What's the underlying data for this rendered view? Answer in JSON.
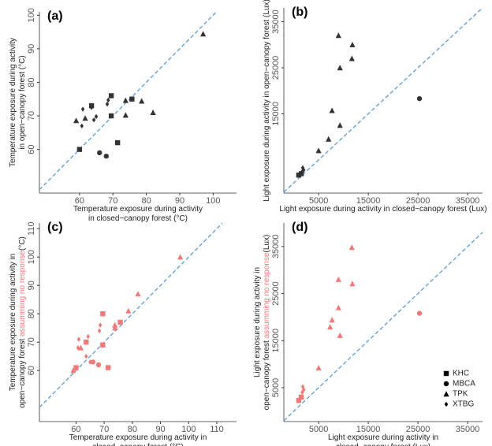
{
  "chart_data": [
    {
      "type": "scatter",
      "title": "(a)",
      "diagonal_color": "#5b9bd5",
      "xlabel": [
        [
          {
            "text": "Temperature exposure during activity"
          }
        ],
        [
          {
            "text": "in closed−canopy forest (°C)"
          }
        ]
      ],
      "ylabel": [
        [
          {
            "text": "Temperature exposure during activity"
          }
        ],
        [
          {
            "text": "in open−canopy forest (°C)"
          }
        ]
      ],
      "xlim": [
        48,
        107
      ],
      "ylim": [
        47,
        101
      ],
      "xticks": [
        60,
        70,
        80,
        90,
        100
      ],
      "yticks": [
        60,
        70,
        80,
        90,
        100
      ],
      "series": [
        {
          "marker": "square",
          "color": "#333333",
          "x": [
            60,
            69.5,
            69.5,
            71.4,
            63.6,
            75.7
          ],
          "values": [
            60,
            76,
            70,
            62,
            73,
            75
          ]
        },
        {
          "marker": "circle",
          "color": "#333333",
          "x": [
            66,
            68
          ],
          "values": [
            59,
            58
          ]
        },
        {
          "marker": "triangle",
          "color": "#333333",
          "x": [
            59,
            61.7,
            73.8,
            73.8,
            78.6,
            82,
            97
          ],
          "values": [
            68.6,
            69.3,
            74.6,
            70.2,
            74.4,
            71,
            94.4
          ]
        },
        {
          "marker": "diamond",
          "color": "#333333",
          "x": [
            61,
            63.6,
            60.7,
            64.3,
            68.6,
            68.3,
            65
          ],
          "values": [
            72,
            72.5,
            67,
            68.8,
            74.7,
            73.5,
            69.8
          ]
        }
      ]
    },
    {
      "type": "scatter",
      "title": "(b)",
      "diagonal_color": "#5b9bd5",
      "xlabel": [
        [
          {
            "text": "Light exposure during activity in closed−canopy forest (Lux)"
          }
        ]
      ],
      "ylabel": [
        [
          {
            "text": "Light exposure during activity in open−canopy forest (Lux)"
          }
        ]
      ],
      "xlim": [
        -2000,
        38000
      ],
      "ylim": [
        -2200,
        38000
      ],
      "xticks": [
        5000,
        15000,
        25000,
        35000
      ],
      "yticks": [
        15000,
        25000,
        35000
      ],
      "series": [
        {
          "marker": "square",
          "color": "#333333",
          "x": [
            1000,
            1500
          ],
          "values": [
            1700,
            2000
          ]
        },
        {
          "marker": "circle",
          "color": "#333333",
          "x": [
            25300
          ],
          "values": [
            18300
          ]
        },
        {
          "marker": "triangle",
          "color": "#333333",
          "x": [
            9000,
            11800,
            11700,
            9300,
            7700,
            9300,
            7000,
            5000
          ],
          "values": [
            32000,
            30000,
            27000,
            25000,
            15700,
            12500,
            9500,
            7000
          ]
        },
        {
          "marker": "diamond",
          "color": "#333333",
          "x": [
            1800,
            2000,
            1700
          ],
          "values": [
            3300,
            2800,
            2500
          ]
        }
      ]
    },
    {
      "type": "scatter",
      "title": "(c)",
      "diagonal_color": "#5b9bd5",
      "xlabel": [
        [
          {
            "text": "Temperature exposure during activity in"
          }
        ],
        [
          {
            "text": "closed−canopy forest (°C)"
          }
        ]
      ],
      "ylabel": [
        [
          {
            "text": "Temperature exposure during activity in"
          }
        ],
        [
          {
            "text": "open−canopy forest "
          },
          {
            "text": "assumming no response",
            "color": "#f07a7a"
          },
          {
            "text": "(°C)"
          }
        ]
      ],
      "xlim": [
        47,
        117
      ],
      "ylim": [
        42,
        112
      ],
      "xticks": [
        60,
        70,
        80,
        90,
        100,
        110
      ],
      "yticks": [
        60,
        70,
        80,
        90,
        100,
        110
      ],
      "series": [
        {
          "marker": "square",
          "color": "#f07a7a",
          "x": [
            60,
            69.5,
            69.5,
            71.4,
            63.6,
            75.7
          ],
          "values": [
            61,
            80,
            69,
            61,
            70,
            77
          ]
        },
        {
          "marker": "circle",
          "color": "#f07a7a",
          "x": [
            66,
            68
          ],
          "values": [
            63,
            62
          ]
        },
        {
          "marker": "triangle",
          "color": "#f07a7a",
          "x": [
            59,
            61.7,
            73.8,
            73.8,
            78.6,
            82,
            97
          ],
          "values": [
            60,
            68,
            76,
            75,
            81,
            87,
            100
          ]
        },
        {
          "marker": "diamond",
          "color": "#f07a7a",
          "x": [
            61,
            63.6,
            60.7,
            64.3,
            68.6,
            68.3,
            65
          ],
          "values": [
            71,
            65,
            68,
            72,
            76,
            74,
            63
          ]
        }
      ]
    },
    {
      "type": "scatter",
      "title": "(d)",
      "diagonal_color": "#5b9bd5",
      "legend": "bottom-right",
      "legend_color": "#000000",
      "xlabel": [
        [
          {
            "text": "Light exposure during activity in"
          }
        ],
        [
          {
            "text": "closed−canopy forest (Lux)"
          }
        ]
      ],
      "ylabel": [
        [
          {
            "text": "Light exposure during activity in"
          }
        ],
        [
          {
            "text": "open−canopy forest "
          },
          {
            "text": "assumming no response",
            "color": "#f07a7a"
          },
          {
            "text": "(Lux)"
          }
        ]
      ],
      "xlim": [
        -2000,
        38000
      ],
      "ylim": [
        -2200,
        40000
      ],
      "xticks": [
        5000,
        15000,
        25000,
        35000
      ],
      "yticks": [
        5000,
        15000,
        25000,
        35000
      ],
      "series": [
        {
          "name": "KHC",
          "marker": "square",
          "color": "#f07a7a",
          "x": [
            1000,
            1500
          ],
          "values": [
            2300,
            3000
          ]
        },
        {
          "name": "MBCA",
          "marker": "circle",
          "color": "#f07a7a",
          "x": [
            25300
          ],
          "values": [
            20800
          ]
        },
        {
          "name": "TPK",
          "marker": "triangle",
          "color": "#f07a7a",
          "x": [
            11700,
            9000,
            11800,
            7700,
            7300,
            9300,
            9000,
            5000
          ],
          "values": [
            34800,
            28000,
            27100,
            19400,
            17900,
            16100,
            22000,
            9200
          ]
        },
        {
          "name": "XTBG",
          "marker": "diamond",
          "color": "#f07a7a",
          "x": [
            1800,
            2000,
            1700
          ],
          "values": [
            5200,
            4600,
            4000
          ]
        }
      ]
    }
  ]
}
